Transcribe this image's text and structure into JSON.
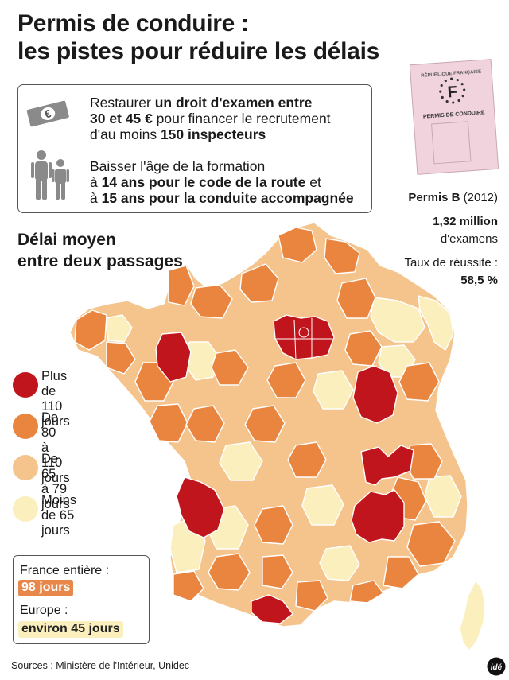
{
  "title": {
    "line1": "Permis de conduire :",
    "line2": "les pistes pour réduire les délais"
  },
  "measures": [
    {
      "icon": "euro-banknote-icon",
      "lines": [
        [
          {
            "t": "Restaurer ",
            "b": false
          },
          {
            "t": "un droit d'examen entre",
            "b": true
          }
        ],
        [
          {
            "t": "30 et 45 €",
            "b": true
          },
          {
            "t": " pour financer le recrutement",
            "b": false
          }
        ],
        [
          {
            "t": "d'au moins ",
            "b": false
          },
          {
            "t": "150 inspecteurs",
            "b": true
          }
        ]
      ]
    },
    {
      "icon": "adult-and-teen-icon",
      "lines": [
        [
          {
            "t": "Baisser l'âge de la formation",
            "b": false
          }
        ],
        [
          {
            "t": "à ",
            "b": false
          },
          {
            "t": "14 ans pour le code de la route",
            "b": true
          },
          {
            "t": " et",
            "b": false
          }
        ],
        [
          {
            "t": "à ",
            "b": false
          },
          {
            "t": "15 ans pour la conduite accompagnée",
            "b": true
          }
        ]
      ]
    }
  ],
  "license_card": {
    "header": "RÉPUBLIQUE FRANÇAISE",
    "letter": "F",
    "label": "PERMIS DE CONDUIRE"
  },
  "permis": {
    "label_bold": "Permis B",
    "year": " (2012)",
    "count": "1,32 million",
    "count_unit": "d'examens",
    "success_label": "Taux de réussite :",
    "success_value": "58,5 %"
  },
  "delai_title": {
    "line1": "Délai moyen",
    "line2": "entre deux passages"
  },
  "legend": [
    {
      "line1": "Plus de",
      "line2": "110 jours",
      "color": "#c0151c"
    },
    {
      "line1": "De 80",
      "line2": "à 110 jours",
      "color": "#ea8540"
    },
    {
      "line1": "De 65",
      "line2": "à 79 jours",
      "color": "#f4c48c"
    },
    {
      "line1": "Moins",
      "line2": "de 65 jours",
      "color": "#fbefbd"
    }
  ],
  "stats": {
    "france_label": "France entière :",
    "france_value": "98 jours",
    "europe_label": "Europe :",
    "europe_value": "environ 45 jours"
  },
  "sources": "Sources : Ministère de l'Intérieur, Unidec",
  "logo_text": "idé",
  "colors": {
    "over_110": "#c0151c",
    "80_110": "#ea8540",
    "65_79": "#f4c48c",
    "under_65": "#fbefbd",
    "card_pink": "#f0d3dc",
    "border": "#ffffff"
  }
}
